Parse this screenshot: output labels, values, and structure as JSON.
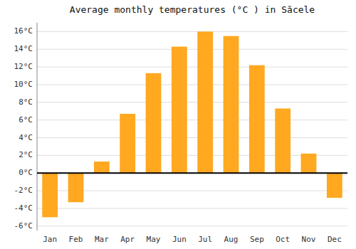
{
  "chart_data": {
    "type": "bar",
    "title": "Average monthly temperatures (°C ) in Săcele",
    "categories": [
      "Jan",
      "Feb",
      "Mar",
      "Apr",
      "May",
      "Jun",
      "Jul",
      "Aug",
      "Sep",
      "Oct",
      "Nov",
      "Dec"
    ],
    "values": [
      -5.0,
      -3.3,
      1.3,
      6.7,
      11.3,
      14.3,
      16.0,
      15.5,
      12.2,
      7.3,
      2.2,
      -2.8
    ],
    "color": "#FFA820",
    "ylim": [
      -6.5,
      17
    ],
    "yticks": [
      {
        "value": -6,
        "label": "-6°C"
      },
      {
        "value": -4,
        "label": "-4°C"
      },
      {
        "value": -2,
        "label": "-2°C"
      },
      {
        "value": 0,
        "label": "0°C"
      },
      {
        "value": 2,
        "label": "2°C"
      },
      {
        "value": 4,
        "label": "4°C"
      },
      {
        "value": 6,
        "label": "6°C"
      },
      {
        "value": 8,
        "label": "8°C"
      },
      {
        "value": 10,
        "label": "10°C"
      },
      {
        "value": 12,
        "label": "12°C"
      },
      {
        "value": 14,
        "label": "14°C"
      },
      {
        "value": 16,
        "label": "16°C"
      }
    ],
    "grid": true
  }
}
